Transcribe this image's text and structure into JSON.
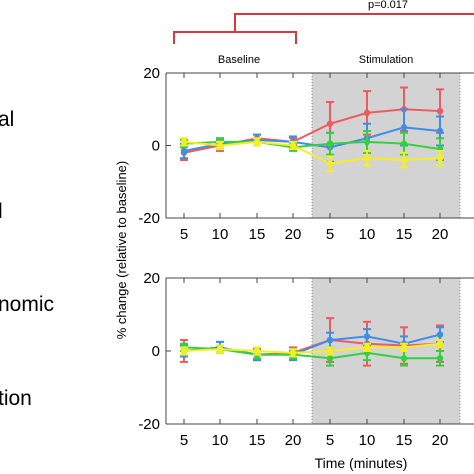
{
  "left_labels": [
    "al",
    "l",
    "nomic",
    "tion"
  ],
  "bracket": {
    "pvalue": "p=0.017",
    "color": "#d9363e"
  },
  "phase_labels": {
    "baseline": "Baseline",
    "stimulation": "Stimulation"
  },
  "ylabel": "% change (relative to baseline)",
  "xlabel": "Time (minutes)",
  "colors": {
    "red": "#ee5a5f",
    "blue": "#3d8ee6",
    "green": "#33d040",
    "yellow": "#f4ee25",
    "shade": "#d3d3d3"
  },
  "chart_data": [
    {
      "type": "line",
      "title": "",
      "ylim": [
        -20,
        20
      ],
      "yticks": [
        -20,
        0,
        20
      ],
      "x": [
        1,
        2,
        3,
        4,
        5,
        6,
        7,
        8
      ],
      "xticklabels": [
        "5",
        "10",
        "15",
        "20",
        "5",
        "10",
        "15",
        "20"
      ],
      "shaded_region": "Stimulation",
      "series": [
        {
          "color": "red",
          "values": [
            -2,
            0,
            2,
            1,
            6,
            9,
            10,
            9.5
          ],
          "err": [
            2,
            1.5,
            1,
            1,
            6,
            6,
            6,
            6
          ]
        },
        {
          "color": "blue",
          "values": [
            -1.5,
            0.5,
            1.5,
            1,
            -0.5,
            2,
            5,
            4
          ],
          "err": [
            2,
            1.5,
            1.5,
            1.5,
            4,
            4,
            5,
            4
          ]
        },
        {
          "color": "green",
          "values": [
            0.5,
            1,
            1,
            -0.5,
            0.5,
            1,
            0.5,
            -1
          ],
          "err": [
            1,
            1,
            1,
            1,
            3,
            3,
            3,
            3
          ]
        },
        {
          "color": "yellow",
          "values": [
            1,
            0,
            1,
            0,
            -5,
            -3.5,
            -4,
            -3.5
          ],
          "err": [
            1,
            1,
            1,
            1,
            2,
            2,
            2,
            2
          ]
        }
      ]
    },
    {
      "type": "line",
      "title": "",
      "ylim": [
        -20,
        20
      ],
      "yticks": [
        -20,
        0,
        20
      ],
      "x": [
        1,
        2,
        3,
        4,
        5,
        6,
        7,
        8
      ],
      "xticklabels": [
        "5",
        "10",
        "15",
        "20",
        "5",
        "10",
        "15",
        "20"
      ],
      "shaded_region": "Stimulation",
      "series": [
        {
          "color": "red",
          "values": [
            0,
            1,
            -1,
            -0.5,
            3,
            2,
            1.5,
            2
          ],
          "err": [
            3,
            1.5,
            1.5,
            1.5,
            6,
            6,
            5,
            5
          ]
        },
        {
          "color": "blue",
          "values": [
            0,
            1,
            -1,
            -1,
            3,
            4,
            2,
            4.5
          ],
          "err": [
            1.5,
            1.5,
            1.5,
            1.5,
            2,
            2,
            2,
            2
          ]
        },
        {
          "color": "green",
          "values": [
            1,
            0.5,
            -1,
            -1,
            -2,
            -0.5,
            -2,
            -2
          ],
          "err": [
            1,
            1,
            1,
            1,
            2,
            2,
            2,
            2
          ]
        },
        {
          "color": "yellow",
          "values": [
            0,
            0.5,
            0,
            -0.5,
            0,
            1,
            1,
            2
          ],
          "err": [
            1,
            1,
            1,
            1,
            1,
            1,
            1,
            1
          ]
        }
      ]
    }
  ]
}
